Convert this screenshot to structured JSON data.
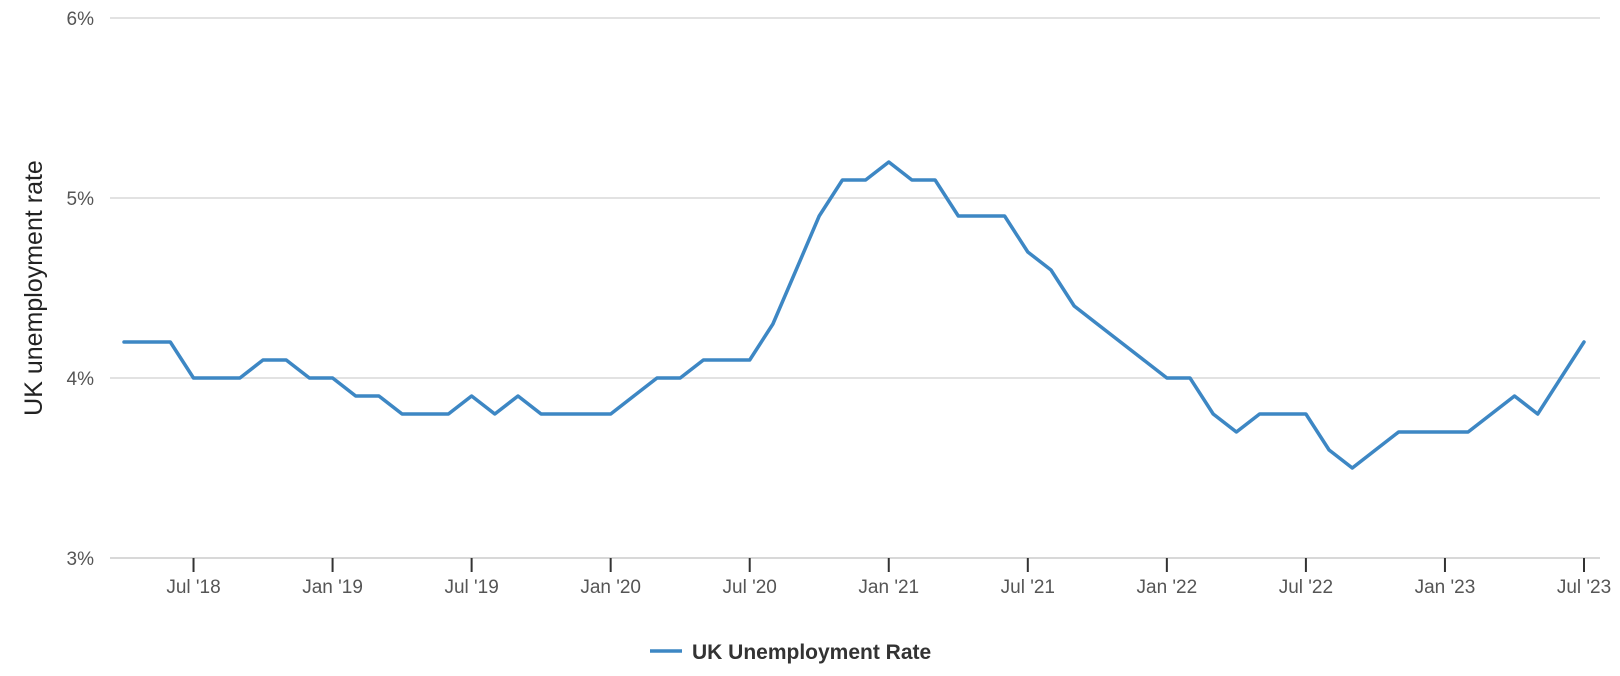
{
  "chart_data": {
    "type": "line",
    "ylabel": "UK unemployment rate",
    "xlabel": "",
    "ylim": [
      3,
      6
    ],
    "y_ticks": [
      3,
      4,
      5,
      6
    ],
    "y_tick_labels": [
      "3%",
      "4%",
      "5%",
      "6%"
    ],
    "x_ticks": [
      "Jul '18",
      "Jan '19",
      "Jul '19",
      "Jan '20",
      "Jul '20",
      "Jan '21",
      "Jul '21",
      "Jan '22",
      "Jul '22",
      "Jan '23",
      "Jul '23"
    ],
    "grid": "horizontal",
    "legend_position": "bottom-center",
    "series": [
      {
        "name": "UK Unemployment Rate",
        "color": "#3d87c4",
        "x": [
          "2018-04",
          "2018-05",
          "2018-06",
          "2018-07",
          "2018-08",
          "2018-09",
          "2018-10",
          "2018-11",
          "2018-12",
          "2019-01",
          "2019-02",
          "2019-03",
          "2019-04",
          "2019-05",
          "2019-06",
          "2019-07",
          "2019-08",
          "2019-09",
          "2019-10",
          "2019-11",
          "2019-12",
          "2020-01",
          "2020-02",
          "2020-03",
          "2020-04",
          "2020-05",
          "2020-06",
          "2020-07",
          "2020-08",
          "2020-09",
          "2020-10",
          "2020-11",
          "2020-12",
          "2021-01",
          "2021-02",
          "2021-03",
          "2021-04",
          "2021-05",
          "2021-06",
          "2021-07",
          "2021-08",
          "2021-09",
          "2021-10",
          "2021-11",
          "2021-12",
          "2022-01",
          "2022-02",
          "2022-03",
          "2022-04",
          "2022-05",
          "2022-06",
          "2022-07",
          "2022-08",
          "2022-09",
          "2022-10",
          "2022-11",
          "2022-12",
          "2023-01",
          "2023-02",
          "2023-03",
          "2023-04",
          "2023-05",
          "2023-06",
          "2023-07"
        ],
        "values": [
          4.2,
          4.2,
          4.2,
          4.0,
          4.0,
          4.0,
          4.1,
          4.1,
          4.0,
          4.0,
          3.9,
          3.9,
          3.8,
          3.8,
          3.8,
          3.9,
          3.8,
          3.9,
          3.8,
          3.8,
          3.8,
          3.8,
          3.9,
          4.0,
          4.0,
          4.1,
          4.1,
          4.1,
          4.3,
          4.6,
          4.9,
          5.1,
          5.1,
          5.2,
          5.1,
          5.1,
          4.9,
          4.9,
          4.9,
          4.7,
          4.6,
          4.4,
          4.3,
          4.2,
          4.1,
          4.0,
          4.0,
          3.8,
          3.7,
          3.8,
          3.8,
          3.8,
          3.6,
          3.5,
          3.6,
          3.7,
          3.7,
          3.7,
          3.7,
          3.8,
          3.9,
          3.8,
          4.0,
          4.2
        ]
      }
    ]
  }
}
